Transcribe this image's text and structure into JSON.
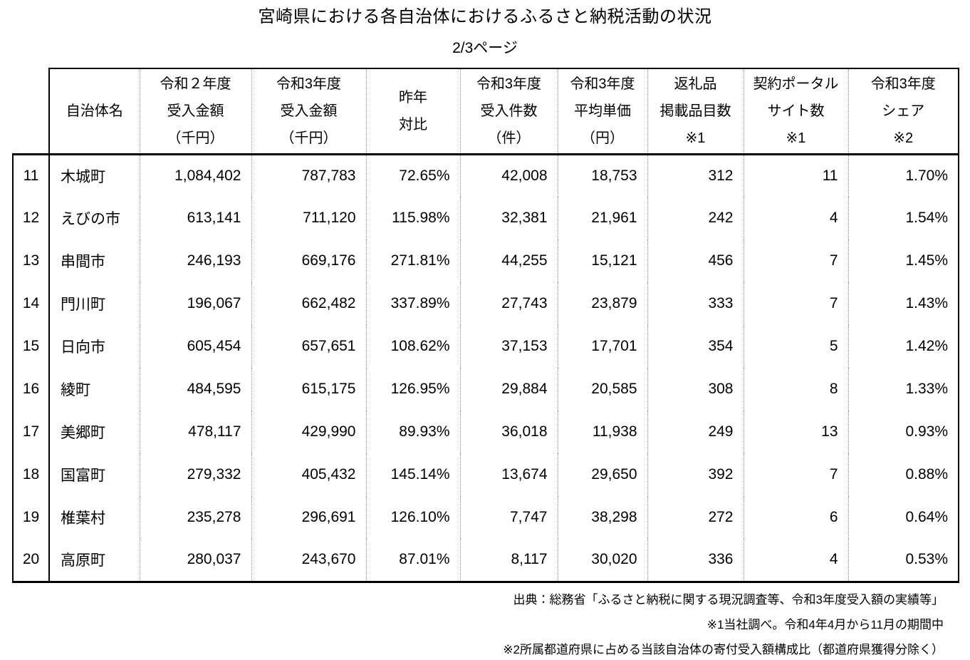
{
  "page": {
    "title": "宮崎県における各自治体におけるふるさと納税活動の状況",
    "page_indicator": "2/3ページ"
  },
  "table": {
    "columns": [
      {
        "id": "rank",
        "header_lines": []
      },
      {
        "id": "name",
        "header_lines": [
          "自治体名"
        ]
      },
      {
        "id": "r2_amount",
        "header_lines": [
          "令和２年度",
          "受入金額",
          "（千円）"
        ]
      },
      {
        "id": "r3_amount",
        "header_lines": [
          "令和3年度",
          "受入金額",
          "（千円）"
        ]
      },
      {
        "id": "yoy",
        "header_lines": [
          "昨年",
          "対比"
        ]
      },
      {
        "id": "r3_count",
        "header_lines": [
          "令和3年度",
          "受入件数",
          "（件）"
        ]
      },
      {
        "id": "r3_avg",
        "header_lines": [
          "令和3年度",
          "平均単価",
          "（円）"
        ]
      },
      {
        "id": "items",
        "header_lines": [
          "返礼品",
          "掲載品目数",
          "※1"
        ]
      },
      {
        "id": "portals",
        "header_lines": [
          "契約ポータル",
          "サイト数",
          "※1"
        ]
      },
      {
        "id": "share",
        "header_lines": [
          "令和3年度",
          "シェア",
          "※2"
        ]
      }
    ],
    "rows": [
      {
        "rank": "11",
        "name": "木城町",
        "r2_amount": "1,084,402",
        "r3_amount": "787,783",
        "yoy": "72.65%",
        "r3_count": "42,008",
        "r3_avg": "18,753",
        "items": "312",
        "portals": "11",
        "share": "1.70%"
      },
      {
        "rank": "12",
        "name": "えびの市",
        "r2_amount": "613,141",
        "r3_amount": "711,120",
        "yoy": "115.98%",
        "r3_count": "32,381",
        "r3_avg": "21,961",
        "items": "242",
        "portals": "4",
        "share": "1.54%"
      },
      {
        "rank": "13",
        "name": "串間市",
        "r2_amount": "246,193",
        "r3_amount": "669,176",
        "yoy": "271.81%",
        "r3_count": "44,255",
        "r3_avg": "15,121",
        "items": "456",
        "portals": "7",
        "share": "1.45%"
      },
      {
        "rank": "14",
        "name": "門川町",
        "r2_amount": "196,067",
        "r3_amount": "662,482",
        "yoy": "337.89%",
        "r3_count": "27,743",
        "r3_avg": "23,879",
        "items": "333",
        "portals": "7",
        "share": "1.43%"
      },
      {
        "rank": "15",
        "name": "日向市",
        "r2_amount": "605,454",
        "r3_amount": "657,651",
        "yoy": "108.62%",
        "r3_count": "37,153",
        "r3_avg": "17,701",
        "items": "354",
        "portals": "5",
        "share": "1.42%"
      },
      {
        "rank": "16",
        "name": "綾町",
        "r2_amount": "484,595",
        "r3_amount": "615,175",
        "yoy": "126.95%",
        "r3_count": "29,884",
        "r3_avg": "20,585",
        "items": "308",
        "portals": "8",
        "share": "1.33%"
      },
      {
        "rank": "17",
        "name": "美郷町",
        "r2_amount": "478,117",
        "r3_amount": "429,990",
        "yoy": "89.93%",
        "r3_count": "36,018",
        "r3_avg": "11,938",
        "items": "249",
        "portals": "13",
        "share": "0.93%"
      },
      {
        "rank": "18",
        "name": "国富町",
        "r2_amount": "279,332",
        "r3_amount": "405,432",
        "yoy": "145.14%",
        "r3_count": "13,674",
        "r3_avg": "29,650",
        "items": "392",
        "portals": "7",
        "share": "0.88%"
      },
      {
        "rank": "19",
        "name": "椎葉村",
        "r2_amount": "235,278",
        "r3_amount": "296,691",
        "yoy": "126.10%",
        "r3_count": "7,747",
        "r3_avg": "38,298",
        "items": "272",
        "portals": "6",
        "share": "0.64%"
      },
      {
        "rank": "20",
        "name": "高原町",
        "r2_amount": "280,037",
        "r3_amount": "243,670",
        "yoy": "87.01%",
        "r3_count": "8,117",
        "r3_avg": "30,020",
        "items": "336",
        "portals": "4",
        "share": "0.53%"
      }
    ]
  },
  "footnotes": [
    "出典：総務省「ふるさと納税に関する現況調査等、令和3年度受入額の実績等」",
    "※1当社調べ。令和4年4月から11月の期間中",
    "※2所属都道府県に占める当該自治体の寄付受入額構成比（都道府県獲得分除く）"
  ]
}
